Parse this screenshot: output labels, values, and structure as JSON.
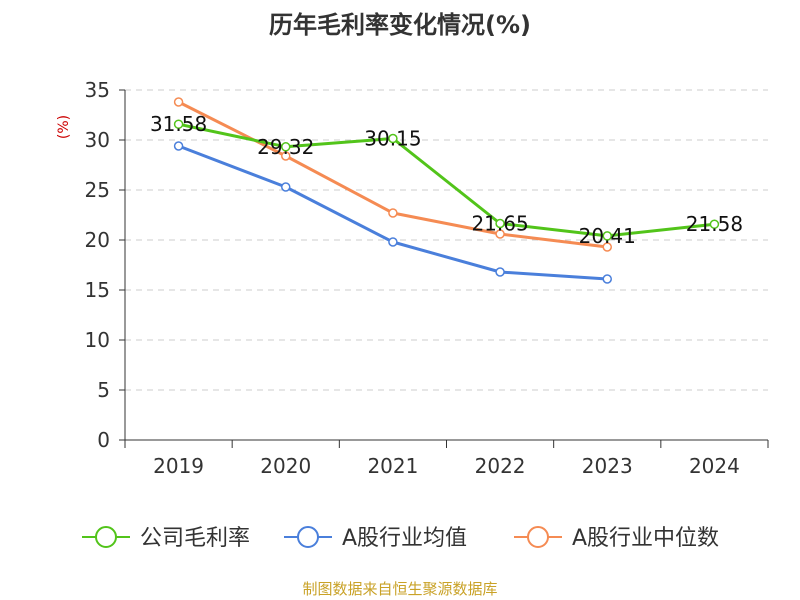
{
  "chart_data": {
    "type": "line",
    "title": "历年毛利率变化情况(%)",
    "ylabel": "(%)",
    "xlabel": "",
    "categories": [
      "2019",
      "2020",
      "2021",
      "2022",
      "2023",
      "2024"
    ],
    "ylim": [
      0,
      35
    ],
    "yticks": [
      0,
      5,
      10,
      15,
      20,
      25,
      30,
      35
    ],
    "grid": "horizontal-dashed",
    "legend_position": "bottom",
    "series": [
      {
        "name": "公司毛利率",
        "color": "#52c41a",
        "values": [
          31.58,
          29.32,
          30.15,
          21.65,
          20.41,
          21.58
        ],
        "show_labels": true
      },
      {
        "name": "A股行业均值",
        "color": "#4a7fdb",
        "values": [
          29.4,
          25.3,
          19.8,
          16.8,
          16.1,
          null
        ],
        "show_labels": false
      },
      {
        "name": "A股行业中位数",
        "color": "#f58b53",
        "values": [
          33.8,
          28.4,
          22.7,
          20.6,
          19.3,
          null
        ],
        "show_labels": false
      }
    ]
  },
  "source_text": "制图数据来自恒生聚源数据库"
}
